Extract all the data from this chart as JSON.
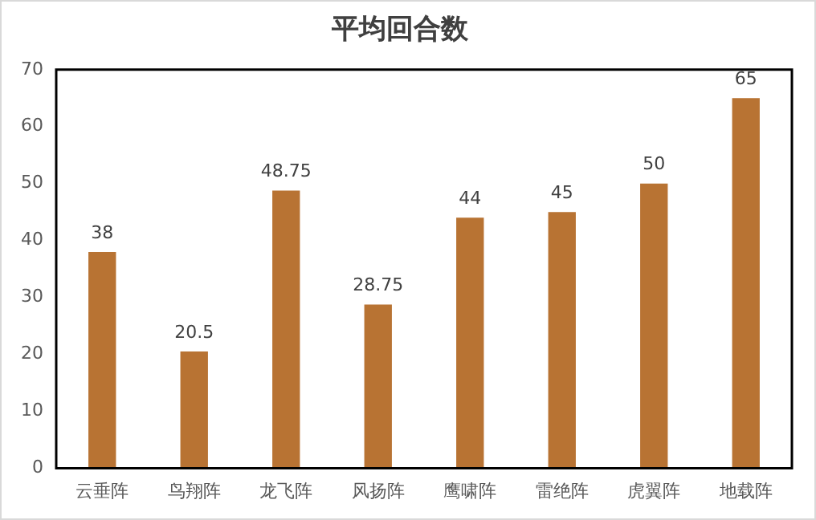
{
  "chart_data": {
    "type": "bar",
    "title": "平均回合数",
    "categories": [
      "云垂阵",
      "鸟翔阵",
      "龙飞阵",
      "风扬阵",
      "鹰啸阵",
      "雷绝阵",
      "虎翼阵",
      "地载阵"
    ],
    "values": [
      38,
      20.5,
      48.75,
      28.75,
      44,
      45,
      50,
      65
    ],
    "color": "#b87333",
    "ylim": [
      0,
      70
    ],
    "yticks": [
      0,
      10,
      20,
      30,
      40,
      50,
      60,
      70
    ],
    "grid": false,
    "legend": false,
    "data_labels": true
  }
}
